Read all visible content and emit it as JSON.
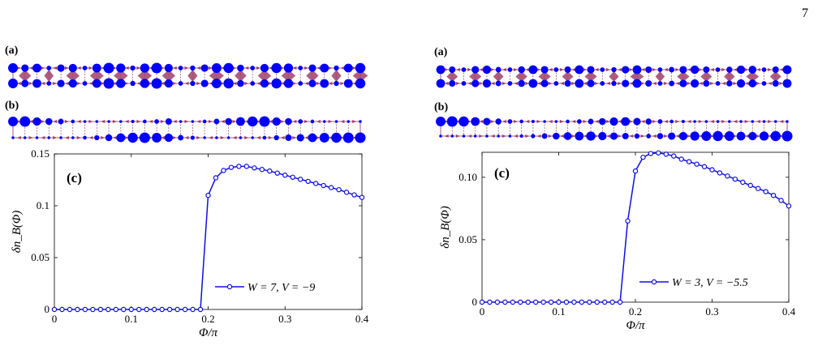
{
  "page_number": "7",
  "panel_labels": {
    "a": "(a)",
    "b": "(b)",
    "c": "(c)"
  },
  "colors": {
    "curve": "#1010e0",
    "site": "#0000ff",
    "current": "#a0406a",
    "axis": "#000000"
  },
  "lattice_strips": [
    {
      "panel": "left",
      "a": {
        "top": [
          0.85,
          0.6,
          0.75,
          0.3,
          0.6,
          0.7,
          0.3,
          0.75,
          0.95,
          0.8,
          0.35,
          0.8,
          0.95,
          0.7,
          0.3,
          0.35,
          0.6,
          0.85,
          0.9,
          0.55,
          0.3,
          0.7,
          0.9,
          0.8,
          0.3,
          0.6,
          0.75,
          0.35,
          0.75,
          0.9
        ],
        "bottom": [
          0.85,
          0.6,
          0.75,
          0.3,
          0.6,
          0.7,
          0.3,
          0.75,
          0.95,
          0.8,
          0.35,
          0.8,
          0.95,
          0.7,
          0.3,
          0.35,
          0.6,
          0.85,
          0.9,
          0.55,
          0.3,
          0.7,
          0.9,
          0.8,
          0.3,
          0.6,
          0.75,
          0.35,
          0.75,
          0.9
        ]
      },
      "b": {
        "top": [
          0.85,
          0.95,
          0.7,
          0.55,
          0.4,
          0.2,
          0.1,
          0.1,
          0.1,
          0.1,
          0.15,
          0.2,
          0.3,
          0.5,
          0.1,
          0.1,
          0.2,
          0.4,
          0.55,
          0.75,
          0.9,
          0.95,
          0.7,
          0.55,
          0.3,
          0.2,
          0.1,
          0.1,
          0.1,
          0.1
        ],
        "bottom": [
          0.1,
          0.1,
          0.1,
          0.1,
          0.1,
          0.1,
          0.2,
          0.35,
          0.55,
          0.75,
          0.9,
          0.95,
          0.85,
          0.7,
          0.4,
          0.25,
          0.1,
          0.1,
          0.1,
          0.1,
          0.1,
          0.2,
          0.35,
          0.5,
          0.6,
          0.75,
          0.85,
          0.9,
          0.95,
          0.95
        ]
      }
    },
    {
      "panel": "right",
      "a": {
        "top": [
          0.75,
          0.5,
          0.3,
          0.6,
          0.7,
          0.4,
          0.3,
          0.55,
          0.75,
          0.6,
          0.3,
          0.5,
          0.75,
          0.6,
          0.3,
          0.35,
          0.6,
          0.75,
          0.5,
          0.3,
          0.4,
          0.6,
          0.7,
          0.5,
          0.3,
          0.45,
          0.7,
          0.65,
          0.3,
          0.5,
          0.75
        ],
        "bottom": [
          0.75,
          0.5,
          0.3,
          0.6,
          0.7,
          0.4,
          0.3,
          0.55,
          0.75,
          0.6,
          0.3,
          0.5,
          0.75,
          0.6,
          0.3,
          0.35,
          0.6,
          0.75,
          0.5,
          0.3,
          0.4,
          0.6,
          0.7,
          0.5,
          0.3,
          0.45,
          0.7,
          0.65,
          0.3,
          0.5,
          0.75
        ]
      },
      "b": {
        "top": [
          0.85,
          0.95,
          0.9,
          0.75,
          0.6,
          0.45,
          0.3,
          0.2,
          0.15,
          0.1,
          0.1,
          0.2,
          0.3,
          0.4,
          0.55,
          0.7,
          0.75,
          0.6,
          0.45,
          0.3,
          0.2,
          0.15,
          0.1,
          0.1,
          0.1,
          0.1,
          0.1,
          0.1,
          0.1,
          0.1,
          0.1
        ],
        "bottom": [
          0.1,
          0.1,
          0.1,
          0.1,
          0.1,
          0.1,
          0.1,
          0.15,
          0.25,
          0.4,
          0.55,
          0.65,
          0.75,
          0.8,
          0.7,
          0.6,
          0.5,
          0.35,
          0.3,
          0.45,
          0.6,
          0.7,
          0.8,
          0.85,
          0.9,
          0.85,
          0.75,
          0.7,
          0.8,
          0.9,
          0.95
        ]
      }
    }
  ],
  "chart_data": [
    {
      "type": "line",
      "panel": "left",
      "panel_label": "(c)",
      "xlabel": "Φ/π",
      "ylabel": "δn_B(Φ)",
      "xlim": [
        0,
        0.4
      ],
      "ylim": [
        0,
        0.15
      ],
      "xticks": [
        0,
        0.1,
        0.2,
        0.3,
        0.4
      ],
      "xtick_labels": [
        "0",
        "0.1",
        "0.2",
        "0.3",
        "0.4"
      ],
      "yticks": [
        0,
        0.05,
        0.1,
        0.15
      ],
      "ytick_labels": [
        "0",
        "0.05",
        "0.1",
        "0.15"
      ],
      "grid": false,
      "legend_position": "bottom-right",
      "series": [
        {
          "name": "W = 7, V = −9",
          "x": [
            0,
            0.01,
            0.02,
            0.03,
            0.04,
            0.05,
            0.06,
            0.07,
            0.08,
            0.09,
            0.1,
            0.11,
            0.12,
            0.13,
            0.14,
            0.15,
            0.16,
            0.17,
            0.18,
            0.19,
            0.2,
            0.21,
            0.22,
            0.23,
            0.24,
            0.25,
            0.26,
            0.27,
            0.28,
            0.29,
            0.3,
            0.31,
            0.32,
            0.33,
            0.34,
            0.35,
            0.36,
            0.37,
            0.38,
            0.39,
            0.4
          ],
          "y": [
            0,
            0,
            0,
            0,
            0,
            0,
            0,
            0,
            0,
            0,
            0,
            0,
            0,
            0,
            0,
            0,
            0,
            0,
            0,
            0,
            0.11,
            0.127,
            0.134,
            0.137,
            0.138,
            0.138,
            0.1365,
            0.135,
            0.1335,
            0.1315,
            0.1295,
            0.1275,
            0.1255,
            0.1235,
            0.1215,
            0.1195,
            0.1175,
            0.1155,
            0.113,
            0.1105,
            0.108
          ]
        }
      ]
    },
    {
      "type": "line",
      "panel": "right",
      "panel_label": "(c)",
      "xlabel": "Φ/π",
      "ylabel": "δn_B(Φ)",
      "xlim": [
        0,
        0.4
      ],
      "ylim": [
        0,
        0.12
      ],
      "xticks": [
        0,
        0.1,
        0.2,
        0.3,
        0.4
      ],
      "xtick_labels": [
        "0",
        "0.1",
        "0.2",
        "0.3",
        "0.4"
      ],
      "yticks": [
        0,
        0.05,
        0.1
      ],
      "ytick_labels": [
        "0",
        "0.05",
        "0.10"
      ],
      "grid": false,
      "legend_position": "bottom-right",
      "series": [
        {
          "name": "W = 3, V = −5.5",
          "x": [
            0,
            0.01,
            0.02,
            0.03,
            0.04,
            0.05,
            0.06,
            0.07,
            0.08,
            0.09,
            0.1,
            0.11,
            0.12,
            0.13,
            0.14,
            0.15,
            0.16,
            0.17,
            0.18,
            0.19,
            0.2,
            0.21,
            0.22,
            0.23,
            0.24,
            0.25,
            0.26,
            0.27,
            0.28,
            0.29,
            0.3,
            0.31,
            0.32,
            0.33,
            0.34,
            0.35,
            0.36,
            0.37,
            0.38,
            0.39,
            0.4
          ],
          "y": [
            0,
            0,
            0,
            0,
            0,
            0,
            0,
            0,
            0,
            0,
            0,
            0,
            0,
            0,
            0,
            0,
            0,
            0,
            0,
            0.065,
            0.105,
            0.116,
            0.119,
            0.1195,
            0.1185,
            0.117,
            0.1145,
            0.1125,
            0.1105,
            0.1085,
            0.106,
            0.1035,
            0.101,
            0.0985,
            0.096,
            0.0935,
            0.091,
            0.0885,
            0.0855,
            0.0815,
            0.077
          ]
        }
      ]
    }
  ]
}
